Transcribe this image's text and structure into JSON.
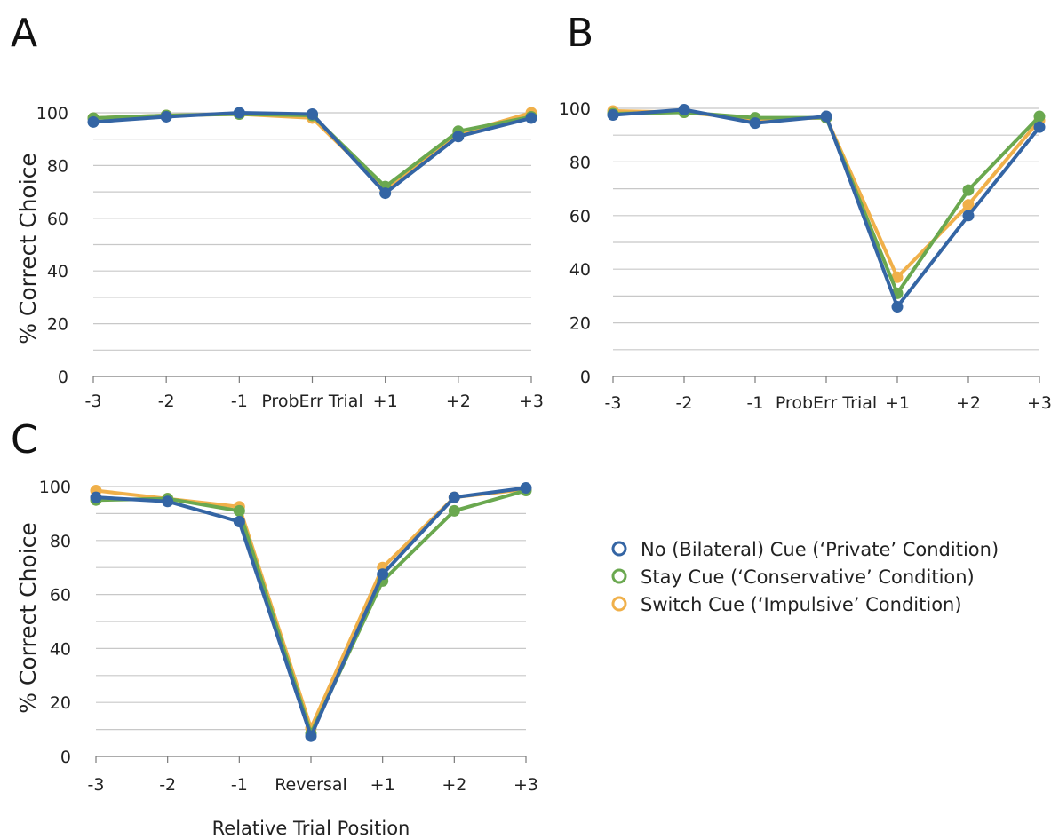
{
  "colors": {
    "No (Bilateral) Cue ('Private' Condition)": "#3465a4",
    "Stay Cue ('Conservative' Condition)": "#6aa84f",
    "Switch Cue ('Impulsive' Condition)": "#f0b04a"
  },
  "legend": {
    "items": [
      "No (Bilateral) Cue (‘Private’ Condition)",
      "Stay Cue (‘Conservative’ Condition)",
      "Switch Cue (‘Impulsive’ Condition)"
    ]
  },
  "chart_data": [
    {
      "type": "line",
      "panel": "A",
      "categories": [
        "-3",
        "-2",
        "-1",
        "ProbErr Trial",
        "+1",
        "+2",
        "+3"
      ],
      "ylabel": "% Correct Choice",
      "xlabel": "",
      "ylim": [
        0,
        100
      ],
      "yticks": [
        0,
        20,
        40,
        60,
        80,
        100
      ],
      "grid": true,
      "series": [
        {
          "name": "Switch Cue (‘Impulsive’ Condition)",
          "values": [
            98,
            99,
            99.5,
            98,
            71,
            92,
            100
          ]
        },
        {
          "name": "Stay Cue (‘Conservative’ Condition)",
          "values": [
            98,
            99,
            99.5,
            99,
            72,
            93,
            98.5
          ]
        },
        {
          "name": "No (Bilateral) Cue (‘Private’ Condition)",
          "values": [
            96.5,
            98.5,
            100,
            99.5,
            69.5,
            91,
            98
          ]
        }
      ]
    },
    {
      "type": "line",
      "panel": "B",
      "categories": [
        "-3",
        "-2",
        "-1",
        "ProbErr Trial",
        "+1",
        "+2",
        "+3"
      ],
      "ylabel": "",
      "xlabel": "",
      "ylim": [
        0,
        100
      ],
      "yticks": [
        0,
        20,
        40,
        60,
        80,
        100
      ],
      "grid": true,
      "series": [
        {
          "name": "Switch Cue (‘Impulsive’ Condition)",
          "values": [
            99,
            98.5,
            96,
            96.5,
            37,
            64,
            95.5
          ]
        },
        {
          "name": "Stay Cue (‘Conservative’ Condition)",
          "values": [
            98,
            98.5,
            96.5,
            96.5,
            31,
            69.5,
            97
          ]
        },
        {
          "name": "No (Bilateral) Cue (‘Private’ Condition)",
          "values": [
            97.5,
            99.5,
            94.5,
            97,
            26,
            60,
            93
          ]
        }
      ]
    },
    {
      "type": "line",
      "panel": "C",
      "categories": [
        "-3",
        "-2",
        "-1",
        "Reversal",
        "+1",
        "+2",
        "+3"
      ],
      "ylabel": "% Correct Choice",
      "xlabel": "Relative Trial Position",
      "ylim": [
        0,
        100
      ],
      "yticks": [
        0,
        20,
        40,
        60,
        80,
        100
      ],
      "grid": true,
      "series": [
        {
          "name": "Switch Cue (‘Impulsive’ Condition)",
          "values": [
            98.5,
            95.5,
            92.5,
            10.5,
            70,
            96,
            99
          ]
        },
        {
          "name": "Stay Cue (‘Conservative’ Condition)",
          "values": [
            95,
            95.5,
            91,
            8.5,
            65,
            91,
            98.5
          ]
        },
        {
          "name": "No (Bilateral) Cue (‘Private’ Condition)",
          "values": [
            96,
            94.5,
            87,
            7.5,
            67.5,
            96,
            99.5
          ]
        }
      ]
    }
  ]
}
